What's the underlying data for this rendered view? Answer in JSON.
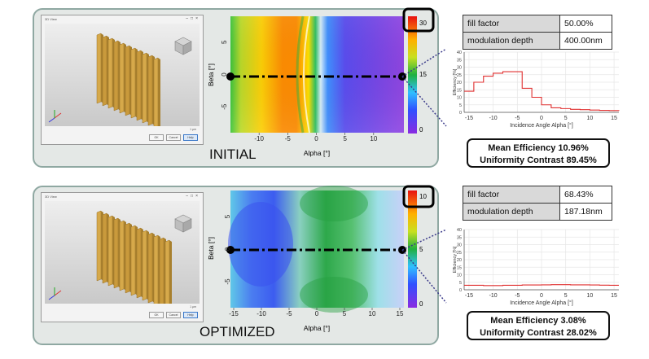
{
  "initial": {
    "label": "INITIAL",
    "table": [
      {
        "key": "fill factor",
        "value": "50.00%"
      },
      {
        "key": "modulation depth",
        "value": "400.00nm"
      }
    ],
    "mean_efficiency": "Mean Efficiency 10.96%",
    "uniformity_contrast": "Uniformity Contrast 89.45%",
    "colorbar": {
      "max_label": "30",
      "mid_label": "15",
      "min_label": "0"
    },
    "heatmap_axes": {
      "xlabel": "Alpha [°]",
      "ylabel": "Beta [°]",
      "xticks": [
        "-10",
        "-5",
        "0",
        "5",
        "10"
      ],
      "yticks": [
        "5",
        "0",
        "-5"
      ]
    },
    "window": {
      "title": "3D View",
      "buttons": [
        "OK",
        "Cancel",
        "Help"
      ],
      "note": "1 μm"
    },
    "efficiency_plot": {
      "xlabel": "Incidence Angle Alpha [°]",
      "ylabel": "Efficiency [%]",
      "xticks": [
        "-15",
        "-10",
        "-5",
        "0",
        "5",
        "10",
        "15"
      ],
      "yticks": [
        "0",
        "5",
        "10",
        "15",
        "20",
        "25",
        "30",
        "35",
        "40"
      ]
    }
  },
  "optimized": {
    "label": "OPTIMIZED",
    "table": [
      {
        "key": "fill factor",
        "value": "68.43%"
      },
      {
        "key": "modulation depth",
        "value": "187.18nm"
      }
    ],
    "mean_efficiency": "Mean Efficiency 3.08%",
    "uniformity_contrast": "Uniformity Contrast 28.02%",
    "colorbar": {
      "max_label": "10",
      "mid_label": "5",
      "min_label": "0"
    },
    "heatmap_axes": {
      "xlabel": "Alpha [°]",
      "ylabel": "Beta [°]",
      "xticks": [
        "-15",
        "-10",
        "-5",
        "0",
        "5",
        "10",
        "15"
      ],
      "yticks": [
        "5",
        "0",
        "-5"
      ]
    },
    "window": {
      "title": "3D View",
      "buttons": [
        "OK",
        "Cancel",
        "Help"
      ],
      "note": "1 μm"
    },
    "efficiency_plot": {
      "xlabel": "Incidence Angle Alpha [°]",
      "ylabel": "Efficiency [%]",
      "xticks": [
        "-15",
        "-10",
        "-5",
        "0",
        "5",
        "10",
        "15"
      ],
      "yticks": [
        "0",
        "5",
        "10",
        "15",
        "20",
        "25",
        "30",
        "35",
        "40"
      ]
    }
  },
  "chart_data": [
    {
      "type": "line",
      "x": [
        -16,
        -14,
        -12,
        -10,
        -8,
        -6,
        -4,
        -2,
        0,
        2,
        4,
        6,
        8,
        10,
        12,
        14,
        16
      ],
      "series": [
        {
          "values": [
            14,
            20,
            24,
            26,
            27,
            27,
            16,
            10,
            5,
            3,
            2.5,
            2,
            1.8,
            1.5,
            1.3,
            1.2,
            1
          ]
        }
      ],
      "xlim": [
        -16,
        16
      ],
      "ylim": [
        0,
        40
      ],
      "grid": true,
      "color": "#e03030"
    },
    {
      "type": "line",
      "x": [
        -16,
        -14,
        -12,
        -10,
        -8,
        -6,
        -4,
        -2,
        0,
        2,
        4,
        6,
        8,
        10,
        12,
        14,
        16
      ],
      "series": [
        {
          "values": [
            3,
            3,
            2.8,
            2.8,
            3,
            3,
            3.2,
            3.2,
            3.3,
            3.4,
            3.4,
            3.3,
            3.3,
            3.2,
            3.1,
            3,
            3
          ]
        }
      ],
      "xlim": [
        -16,
        16
      ],
      "ylim": [
        0,
        40
      ],
      "grid": true,
      "color": "#e03030"
    }
  ]
}
